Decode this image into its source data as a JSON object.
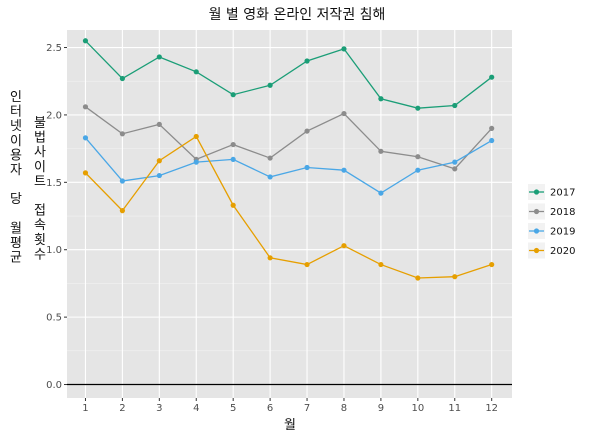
{
  "chart_data": {
    "type": "line",
    "title": "월 별 영화 온라인 저작권 침해",
    "xlabel": "월",
    "ylabel": "인터넷이용자 당 월평균 불법사이트 접속횟수",
    "ylabel_lines": [
      "인터넷이용자 당 월평균",
      "불법사이트 접속횟수"
    ],
    "x": [
      1,
      2,
      3,
      4,
      5,
      6,
      7,
      8,
      9,
      10,
      11,
      12
    ],
    "y_ticks": [
      0.0,
      0.5,
      1.0,
      1.5,
      2.0,
      2.5
    ],
    "y_tick_labels": [
      "0.0",
      "0.5",
      "1.0",
      "1.5",
      "2.0",
      "2.5"
    ],
    "x_tick_labels": [
      "1",
      "2",
      "3",
      "4",
      "5",
      "6",
      "7",
      "8",
      "9",
      "10",
      "11",
      "12"
    ],
    "ylim": [
      -0.1,
      2.63
    ],
    "xlim": [
      0.5,
      12.55
    ],
    "grid": true,
    "legend_position": "right",
    "series": [
      {
        "name": "2017",
        "color": "#1b9e77",
        "values": [
          2.55,
          2.27,
          2.43,
          2.32,
          2.15,
          2.22,
          2.4,
          2.49,
          2.12,
          2.05,
          2.07,
          2.28
        ]
      },
      {
        "name": "2018",
        "color": "#8c8c8c",
        "values": [
          2.06,
          1.86,
          1.93,
          1.67,
          1.78,
          1.68,
          1.88,
          2.01,
          1.73,
          1.69,
          1.6,
          1.9
        ]
      },
      {
        "name": "2019",
        "color": "#4aa7e6",
        "values": [
          1.83,
          1.51,
          1.55,
          1.65,
          1.67,
          1.54,
          1.61,
          1.59,
          1.42,
          1.59,
          1.65,
          1.81
        ]
      },
      {
        "name": "2020",
        "color": "#e69f00",
        "values": [
          1.57,
          1.29,
          1.66,
          1.84,
          1.33,
          0.94,
          0.89,
          1.03,
          0.89,
          0.79,
          0.8,
          0.89
        ]
      }
    ]
  }
}
